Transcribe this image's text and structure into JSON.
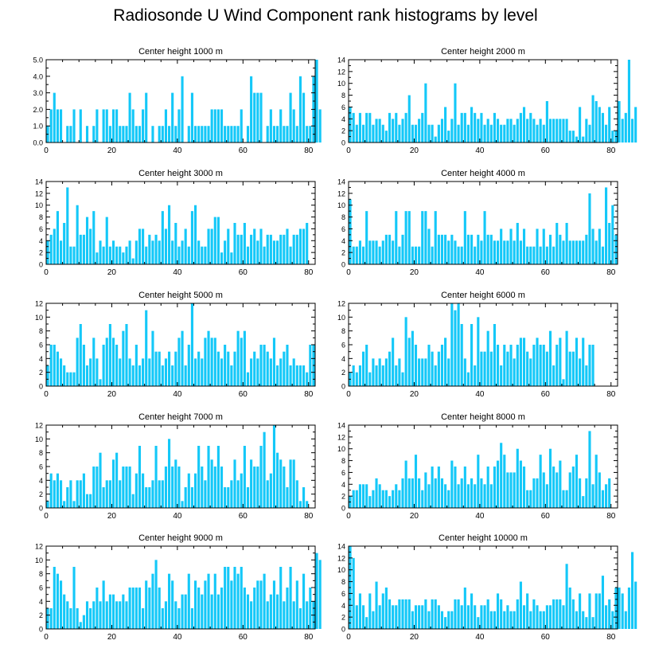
{
  "title": "Radiosonde U Wind Component rank histograms by level",
  "bar_color": "#14c8f8",
  "chart_data": [
    {
      "type": "bar",
      "title": "Center height 1000 m",
      "xlim": [
        0,
        82
      ],
      "ylim": [
        0,
        5
      ],
      "xticks": [
        0,
        20,
        40,
        60,
        80
      ],
      "yticks": [
        0,
        1,
        2,
        3,
        4,
        5
      ],
      "ytick_labels": [
        "0.0",
        "1.0",
        "2.0",
        "3.0",
        "4.0",
        "5.0"
      ],
      "values": [
        1,
        2,
        3,
        2,
        2,
        0,
        1,
        1,
        2,
        0,
        2,
        0,
        1,
        0,
        1,
        2,
        0,
        2,
        2,
        1,
        2,
        2,
        1,
        1,
        1,
        3,
        2,
        1,
        1,
        2,
        3,
        0,
        1,
        0,
        1,
        1,
        2,
        1,
        3,
        1,
        2,
        4,
        0,
        1,
        3,
        1,
        1,
        1,
        1,
        1,
        2,
        2,
        2,
        2,
        1,
        1,
        1,
        1,
        1,
        2,
        0,
        1,
        4,
        3,
        3,
        3,
        0,
        1,
        2,
        1,
        1,
        2,
        1,
        1,
        3,
        2,
        1,
        4,
        3,
        1,
        1,
        4,
        5,
        2
      ]
    },
    {
      "type": "bar",
      "title": "Center height 2000 m",
      "xlim": [
        0,
        82
      ],
      "ylim": [
        0,
        14
      ],
      "xticks": [
        0,
        20,
        40,
        60,
        80
      ],
      "yticks": [
        0,
        2,
        4,
        6,
        8,
        10,
        12,
        14
      ],
      "ytick_labels": [
        "0",
        "2",
        "4",
        "6",
        "8",
        "10",
        "12",
        "14"
      ],
      "values": [
        6,
        5,
        3,
        5,
        3,
        5,
        5,
        3,
        4,
        4,
        3,
        2,
        5,
        4,
        5,
        3,
        4,
        5,
        8,
        3,
        3,
        4,
        5,
        10,
        3,
        3,
        1,
        3,
        4,
        6,
        2,
        4,
        10,
        3,
        5,
        5,
        3,
        6,
        5,
        4,
        5,
        3,
        4,
        3,
        5,
        4,
        3,
        3,
        4,
        4,
        3,
        4,
        5,
        6,
        4,
        5,
        4,
        3,
        4,
        3,
        7,
        4,
        4,
        4,
        4,
        4,
        4,
        2,
        2,
        1,
        6,
        1,
        4,
        3,
        8,
        7,
        6,
        5,
        3,
        6,
        2,
        2,
        7,
        4,
        5,
        14,
        4,
        6
      ]
    },
    {
      "type": "bar",
      "title": "Center height 3000 m",
      "xlim": [
        0,
        82
      ],
      "ylim": [
        0,
        14
      ],
      "xticks": [
        0,
        20,
        40,
        60,
        80
      ],
      "yticks": [
        0,
        2,
        4,
        6,
        8,
        10,
        12,
        14
      ],
      "ytick_labels": [
        "0",
        "2",
        "4",
        "6",
        "8",
        "10",
        "12",
        "14"
      ],
      "values": [
        4,
        5,
        6,
        9,
        4,
        7,
        13,
        3,
        3,
        10,
        5,
        5,
        8,
        6,
        9,
        2,
        4,
        3,
        8,
        3,
        4,
        3,
        3,
        2,
        3,
        4,
        1,
        4,
        6,
        6,
        3,
        5,
        4,
        5,
        4,
        9,
        6,
        10,
        4,
        7,
        3,
        4,
        6,
        3,
        9,
        10,
        4,
        3,
        3,
        6,
        6,
        8,
        8,
        2,
        4,
        6,
        2,
        7,
        5,
        5,
        7,
        3,
        5,
        6,
        4,
        6,
        3,
        5,
        5,
        4,
        4,
        5,
        5,
        6,
        3,
        5,
        5,
        6,
        6,
        7
      ]
    },
    {
      "type": "bar",
      "title": "Center height 4000 m",
      "xlim": [
        0,
        82
      ],
      "ylim": [
        0,
        14
      ],
      "xticks": [
        0,
        20,
        40,
        60,
        80
      ],
      "yticks": [
        0,
        2,
        4,
        6,
        8,
        10,
        12,
        14
      ],
      "ytick_labels": [
        "0",
        "2",
        "4",
        "6",
        "8",
        "10",
        "12",
        "14"
      ],
      "values": [
        11,
        3,
        3,
        4,
        3,
        9,
        4,
        4,
        4,
        3,
        4,
        5,
        5,
        4,
        9,
        3,
        5,
        9,
        9,
        3,
        3,
        3,
        9,
        9,
        6,
        3,
        9,
        5,
        5,
        5,
        4,
        5,
        4,
        3,
        3,
        9,
        5,
        5,
        3,
        5,
        4,
        9,
        5,
        5,
        4,
        4,
        6,
        4,
        4,
        6,
        4,
        7,
        4,
        6,
        3,
        3,
        3,
        6,
        3,
        6,
        3,
        5,
        3,
        7,
        5,
        4,
        7,
        4,
        4,
        4,
        4,
        4,
        5,
        12,
        6,
        4,
        6,
        3,
        13,
        7,
        10,
        5
      ]
    },
    {
      "type": "bar",
      "title": "Center height 5000 m",
      "xlim": [
        0,
        82
      ],
      "ylim": [
        0,
        12
      ],
      "xticks": [
        0,
        20,
        40,
        60,
        80
      ],
      "yticks": [
        0,
        2,
        4,
        6,
        8,
        10,
        12
      ],
      "ytick_labels": [
        "0",
        "2",
        "4",
        "6",
        "8",
        "10",
        "12"
      ],
      "values": [
        3,
        6,
        6,
        5,
        4,
        3,
        2,
        2,
        2,
        7,
        9,
        6,
        3,
        4,
        7,
        4,
        1,
        6,
        7,
        9,
        7,
        6,
        4,
        8,
        9,
        4,
        3,
        6,
        3,
        4,
        11,
        4,
        8,
        5,
        5,
        3,
        4,
        5,
        3,
        5,
        7,
        8,
        3,
        6,
        12,
        4,
        5,
        4,
        7,
        8,
        7,
        7,
        5,
        4,
        6,
        5,
        3,
        5,
        8,
        7,
        8,
        2,
        4,
        5,
        4,
        6,
        6,
        5,
        4,
        7,
        3,
        4,
        5,
        6,
        3,
        4,
        3,
        3,
        3,
        2,
        6,
        6
      ]
    },
    {
      "type": "bar",
      "title": "Center height 6000 m",
      "xlim": [
        0,
        82
      ],
      "ylim": [
        0,
        12
      ],
      "xticks": [
        0,
        20,
        40,
        60,
        80
      ],
      "yticks": [
        0,
        2,
        4,
        6,
        8,
        10,
        12
      ],
      "ytick_labels": [
        "0",
        "2",
        "4",
        "6",
        "8",
        "10",
        "12"
      ],
      "values": [
        2,
        3,
        2,
        3,
        5,
        6,
        2,
        4,
        3,
        4,
        3,
        4,
        5,
        7,
        3,
        4,
        2,
        10,
        7,
        8,
        6,
        4,
        4,
        4,
        6,
        5,
        3,
        5,
        6,
        7,
        4,
        12,
        11,
        12,
        9,
        4,
        2,
        9,
        3,
        10,
        5,
        5,
        8,
        5,
        9,
        6,
        3,
        6,
        5,
        6,
        4,
        6,
        7,
        7,
        5,
        4,
        6,
        7,
        6,
        6,
        5,
        8,
        3,
        6,
        7,
        1,
        8,
        5,
        5,
        7,
        4,
        7,
        3,
        6,
        6,
        0
      ]
    },
    {
      "type": "bar",
      "title": "Center height 7000 m",
      "xlim": [
        0,
        82
      ],
      "ylim": [
        0,
        12
      ],
      "xticks": [
        0,
        20,
        40,
        60,
        80
      ],
      "yticks": [
        0,
        2,
        4,
        6,
        8,
        10,
        12
      ],
      "ytick_labels": [
        "0",
        "2",
        "4",
        "6",
        "8",
        "10",
        "12"
      ],
      "values": [
        1,
        5,
        4,
        5,
        4,
        1,
        3,
        4,
        1,
        4,
        4,
        5,
        2,
        2,
        6,
        6,
        8,
        3,
        4,
        4,
        7,
        8,
        4,
        6,
        6,
        6,
        2,
        5,
        9,
        5,
        3,
        3,
        4,
        9,
        4,
        4,
        6,
        10,
        6,
        7,
        6,
        1,
        3,
        5,
        3,
        5,
        9,
        6,
        4,
        9,
        7,
        6,
        9,
        6,
        3,
        3,
        4,
        7,
        4,
        5,
        9,
        3,
        7,
        6,
        6,
        9,
        11,
        4,
        5,
        12,
        8,
        7,
        6,
        3,
        7,
        7,
        4,
        1,
        3,
        1
      ]
    },
    {
      "type": "bar",
      "title": "Center height 8000 m",
      "xlim": [
        0,
        82
      ],
      "ylim": [
        0,
        14
      ],
      "xticks": [
        0,
        20,
        40,
        60,
        80
      ],
      "yticks": [
        0,
        2,
        4,
        6,
        8,
        10,
        12,
        14
      ],
      "ytick_labels": [
        "0",
        "2",
        "4",
        "6",
        "8",
        "10",
        "12",
        "14"
      ],
      "values": [
        2,
        3,
        3,
        4,
        4,
        4,
        2,
        3,
        5,
        4,
        3,
        3,
        2,
        3,
        4,
        3,
        5,
        8,
        5,
        5,
        9,
        5,
        3,
        6,
        4,
        7,
        5,
        7,
        5,
        4,
        3,
        8,
        7,
        4,
        5,
        7,
        4,
        5,
        4,
        9,
        5,
        4,
        7,
        4,
        7,
        8,
        11,
        9,
        6,
        6,
        6,
        10,
        8,
        7,
        3,
        3,
        5,
        5,
        9,
        6,
        4,
        10,
        7,
        6,
        8,
        3,
        3,
        6,
        7,
        9,
        5,
        2,
        5,
        13,
        4,
        9,
        6,
        3,
        4,
        5
      ]
    },
    {
      "type": "bar",
      "title": "Center height 9000 m",
      "xlim": [
        0,
        82
      ],
      "ylim": [
        0,
        12
      ],
      "xticks": [
        0,
        20,
        40,
        60,
        80
      ],
      "yticks": [
        0,
        2,
        4,
        6,
        8,
        10,
        12
      ],
      "ytick_labels": [
        "0",
        "2",
        "4",
        "6",
        "8",
        "10",
        "12"
      ],
      "values": [
        3,
        3,
        9,
        8,
        7,
        5,
        4,
        3,
        9,
        3,
        1,
        2,
        4,
        3,
        4,
        6,
        4,
        7,
        4,
        5,
        5,
        4,
        4,
        5,
        4,
        6,
        6,
        6,
        6,
        3,
        7,
        6,
        8,
        10,
        6,
        3,
        4,
        8,
        7,
        4,
        3,
        5,
        5,
        8,
        3,
        7,
        6,
        5,
        7,
        8,
        5,
        8,
        5,
        6,
        9,
        9,
        7,
        9,
        8,
        9,
        6,
        5,
        4,
        6,
        7,
        7,
        8,
        4,
        5,
        7,
        5,
        9,
        4,
        6,
        9,
        4,
        7,
        3,
        8,
        4,
        6,
        4,
        11,
        10
      ]
    },
    {
      "type": "bar",
      "title": "Center height 10000 m",
      "xlim": [
        0,
        82
      ],
      "ylim": [
        0,
        14
      ],
      "xticks": [
        0,
        20,
        40,
        60,
        80
      ],
      "yticks": [
        0,
        2,
        4,
        6,
        8,
        10,
        12,
        14
      ],
      "ytick_labels": [
        "0",
        "2",
        "4",
        "6",
        "8",
        "10",
        "12",
        "14"
      ],
      "values": [
        14,
        12,
        4,
        6,
        4,
        2,
        6,
        3,
        8,
        4,
        6,
        7,
        5,
        4,
        4,
        5,
        5,
        5,
        5,
        3,
        4,
        4,
        4,
        5,
        3,
        5,
        5,
        4,
        3,
        2,
        3,
        3,
        5,
        5,
        4,
        7,
        4,
        6,
        4,
        2,
        4,
        4,
        5,
        3,
        3,
        6,
        5,
        3,
        4,
        3,
        3,
        5,
        8,
        4,
        6,
        3,
        5,
        4,
        3,
        3,
        4,
        4,
        5,
        5,
        5,
        4,
        11,
        7,
        5,
        3,
        6,
        3,
        2,
        6,
        2,
        6,
        6,
        9,
        4,
        5,
        3,
        7,
        7,
        6,
        3,
        7,
        13,
        8
      ]
    }
  ]
}
